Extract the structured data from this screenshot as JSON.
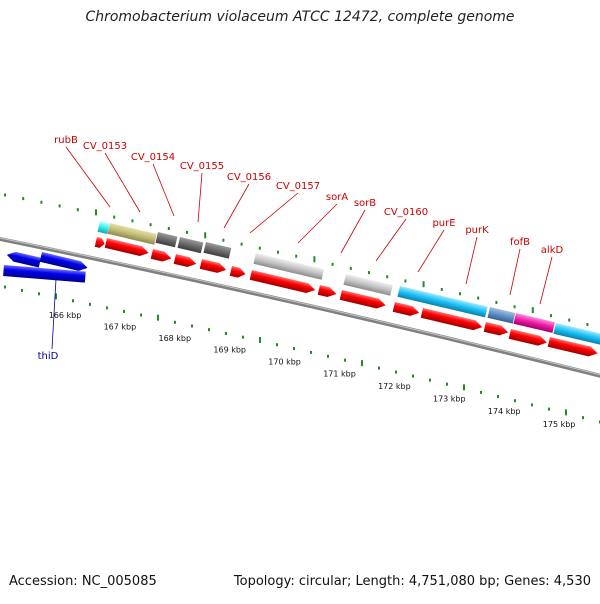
{
  "title": "Chromobacterium violaceum ATCC 12472, complete genome",
  "footer": {
    "accession": "Accession: NC_005085",
    "stats": "Topology: circular; Length: 4,751,080 bp; Genes: 4,530"
  },
  "colors": {
    "forward_cds": "#ff0000",
    "reverse_cds": "#0000ee",
    "gene_label_top": "#cc0000",
    "gene_label_bottom": "#000099",
    "gc_ticks": "#228b22",
    "backbone": "#808080"
  },
  "scale_ticks": [
    {
      "label": "166 kbp"
    },
    {
      "label": "167 kbp"
    },
    {
      "label": "168 kbp"
    },
    {
      "label": "169 kbp"
    },
    {
      "label": "170 kbp"
    },
    {
      "label": "171 kbp"
    },
    {
      "label": "172 kbp"
    },
    {
      "label": "173 kbp"
    },
    {
      "label": "174 kbp"
    },
    {
      "label": "175 kbp"
    }
  ],
  "gene_labels_top": [
    "rubB",
    "CV_0153",
    "CV_0154",
    "CV_0155",
    "CV_0156",
    "CV_0157",
    "sorA",
    "sorB",
    "CV_0160",
    "purE",
    "purK",
    "fofB",
    "alkD"
  ],
  "gene_labels_bottom": [
    "thiD"
  ]
}
